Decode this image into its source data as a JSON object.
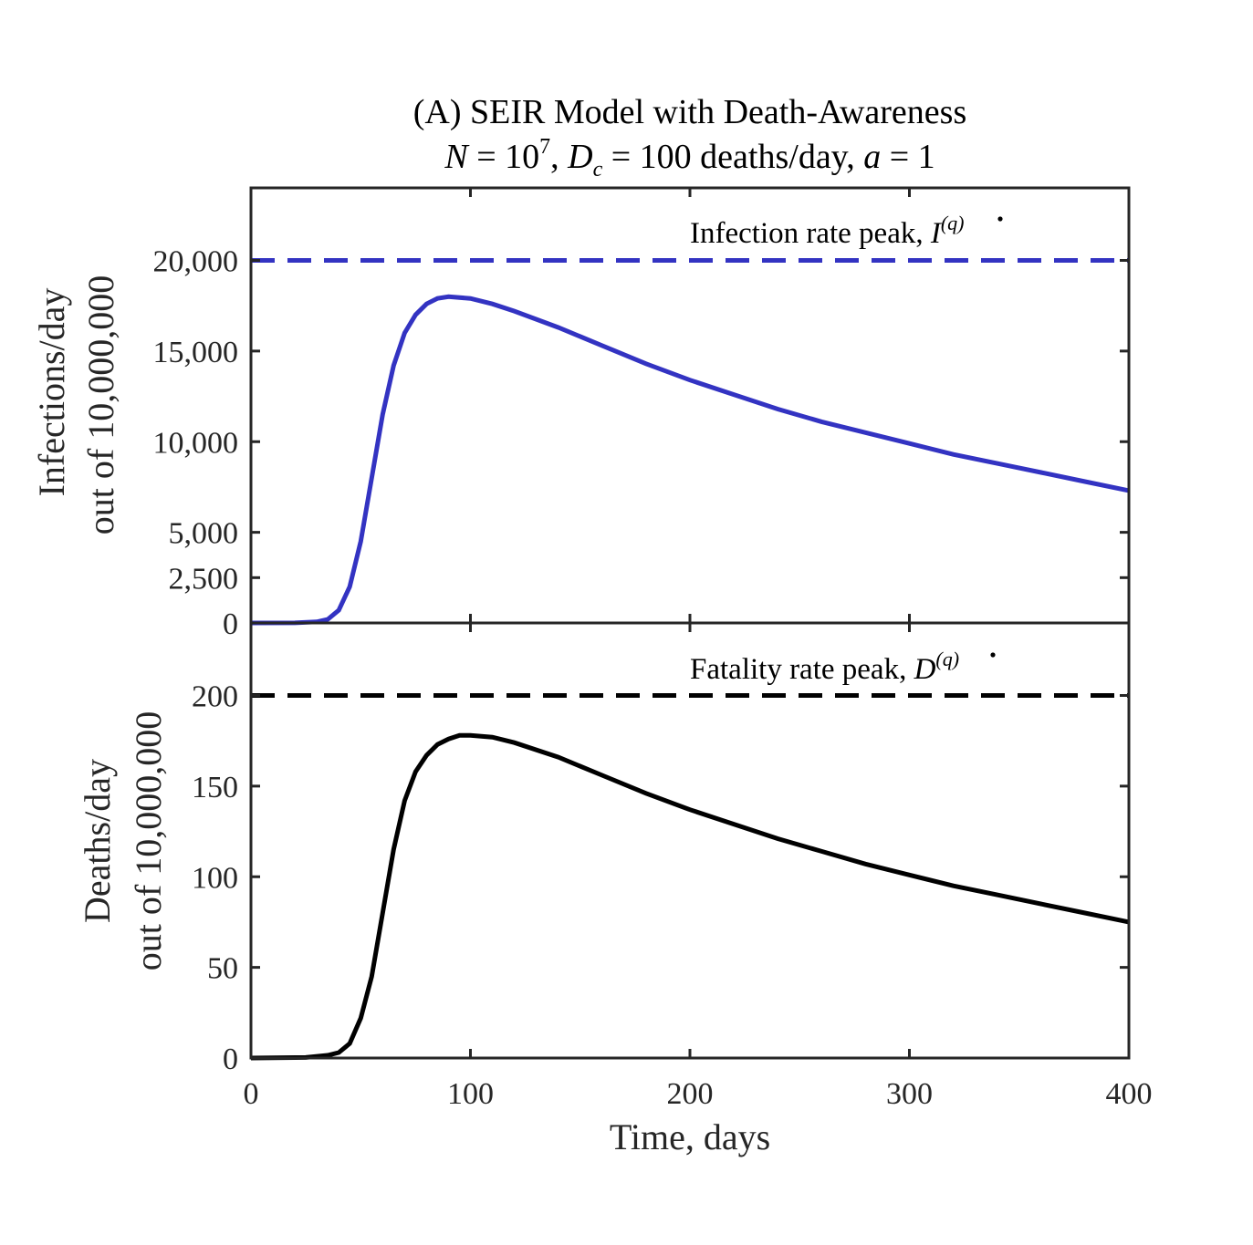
{
  "chart_data": {
    "title": {
      "line1": "(A) SEIR Model with Death-Awareness",
      "line2": {
        "n_sym": "N",
        "n_eq": " = 10",
        "n_exp": "7",
        "dc_sym": "D",
        "dc_sub": "c",
        "dc_eq": " = 100 deaths/day, ",
        "a_sym": "a",
        "a_eq": " = 1"
      }
    },
    "xlabel": "Time, days",
    "xlim": [
      0,
      400
    ],
    "xticks": [
      0,
      100,
      200,
      300,
      400
    ],
    "x_tick_labels": [
      "0",
      "100",
      "200",
      "300",
      "400"
    ],
    "panels": [
      {
        "id": "infections",
        "type": "line",
        "ylabel_line1": "Infections/day",
        "ylabel_line2": "out of 10,000,000",
        "ylim": [
          0,
          24000
        ],
        "yticks": [
          0,
          2500,
          5000,
          10000,
          15000,
          20000
        ],
        "y_tick_labels": [
          "0",
          "2,500",
          "5,000",
          "10,000",
          "15,000",
          "20,000"
        ],
        "color": "#3333c2",
        "peak_line": {
          "value": 20000,
          "label_prefix": "Infection rate peak, ",
          "label_sym": "I",
          "label_sup": "(q)"
        },
        "series": {
          "x": [
            0,
            20,
            30,
            35,
            40,
            45,
            50,
            55,
            60,
            65,
            70,
            75,
            80,
            85,
            90,
            100,
            110,
            120,
            140,
            160,
            180,
            200,
            220,
            240,
            260,
            280,
            300,
            320,
            340,
            360,
            380,
            400
          ],
          "y": [
            0,
            5,
            60,
            200,
            700,
            2000,
            4500,
            8000,
            11500,
            14200,
            16000,
            17000,
            17600,
            17900,
            18000,
            17900,
            17600,
            17200,
            16300,
            15300,
            14300,
            13400,
            12600,
            11800,
            11100,
            10500,
            9900,
            9300,
            8800,
            8300,
            7800,
            7300
          ]
        }
      },
      {
        "id": "deaths",
        "type": "line",
        "ylabel_line1": "Deaths/day",
        "ylabel_line2": "out of 10,000,000",
        "ylim": [
          0,
          240
        ],
        "yticks": [
          0,
          50,
          100,
          150,
          200
        ],
        "y_tick_labels": [
          "0",
          "50",
          "100",
          "150",
          "200"
        ],
        "color": "#000000",
        "peak_line": {
          "value": 200,
          "label_prefix": "Fatality rate peak, ",
          "label_sym": "D",
          "label_sup": "(q)"
        },
        "series": {
          "x": [
            0,
            25,
            35,
            40,
            45,
            50,
            55,
            60,
            65,
            70,
            75,
            80,
            85,
            90,
            95,
            100,
            110,
            120,
            140,
            160,
            180,
            200,
            220,
            240,
            260,
            280,
            300,
            320,
            340,
            360,
            380,
            400
          ],
          "y": [
            0,
            0.3,
            1.5,
            3,
            8,
            22,
            45,
            80,
            115,
            142,
            158,
            167,
            173,
            176,
            178,
            178,
            177,
            174,
            166,
            156,
            146,
            137,
            129,
            121,
            114,
            107,
            101,
            95,
            90,
            85,
            80,
            75
          ]
        }
      }
    ]
  }
}
